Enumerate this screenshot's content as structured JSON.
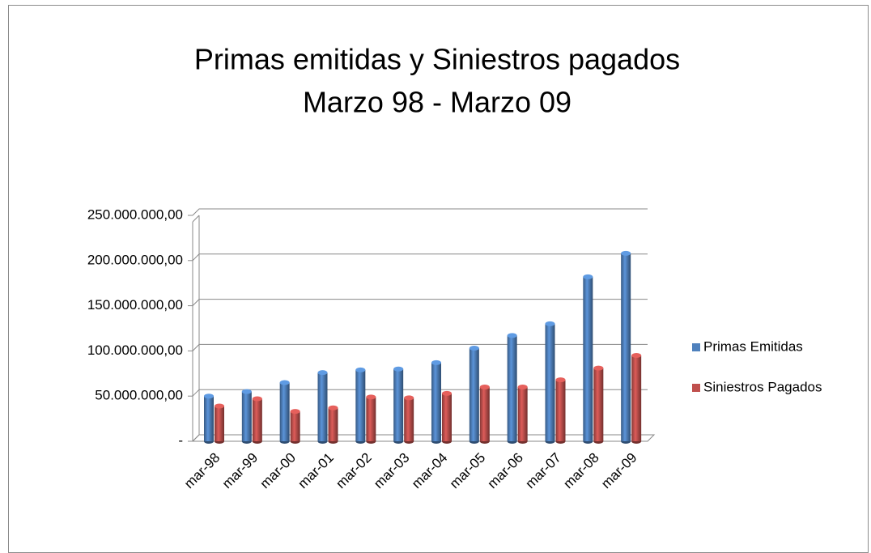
{
  "chart_data": {
    "type": "bar",
    "title": "Primas emitidas y Siniestros pagados",
    "subtitle": "Marzo 98 - Marzo 09",
    "categories": [
      "mar-98",
      "mar-99",
      "mar-00",
      "mar-01",
      "mar-02",
      "mar-03",
      "mar-04",
      "mar-05",
      "mar-06",
      "mar-07",
      "mar-08",
      "mar-09"
    ],
    "series": [
      {
        "name": "Primas Emitidas",
        "color": "#4f81bd",
        "values": [
          50000000,
          55000000,
          65000000,
          76000000,
          79000000,
          80000000,
          87000000,
          103000000,
          117000000,
          130000000,
          182000000,
          208000000
        ]
      },
      {
        "name": "Siniestros Pagados",
        "color": "#c0504d",
        "values": [
          39000000,
          47000000,
          33000000,
          37000000,
          49000000,
          48000000,
          53000000,
          60000000,
          60000000,
          68000000,
          81000000,
          95000000
        ]
      }
    ],
    "ylim": [
      0,
      250000000
    ],
    "yticks": [
      {
        "value": 0,
        "label": "-"
      },
      {
        "value": 50000000,
        "label": "50.000.000,00"
      },
      {
        "value": 100000000,
        "label": "100.000.000,00"
      },
      {
        "value": 150000000,
        "label": "150.000.000,00"
      },
      {
        "value": 200000000,
        "label": "200.000.000,00"
      },
      {
        "value": 250000000,
        "label": "250.000.000,00"
      }
    ],
    "grid": true,
    "legend": "right"
  }
}
